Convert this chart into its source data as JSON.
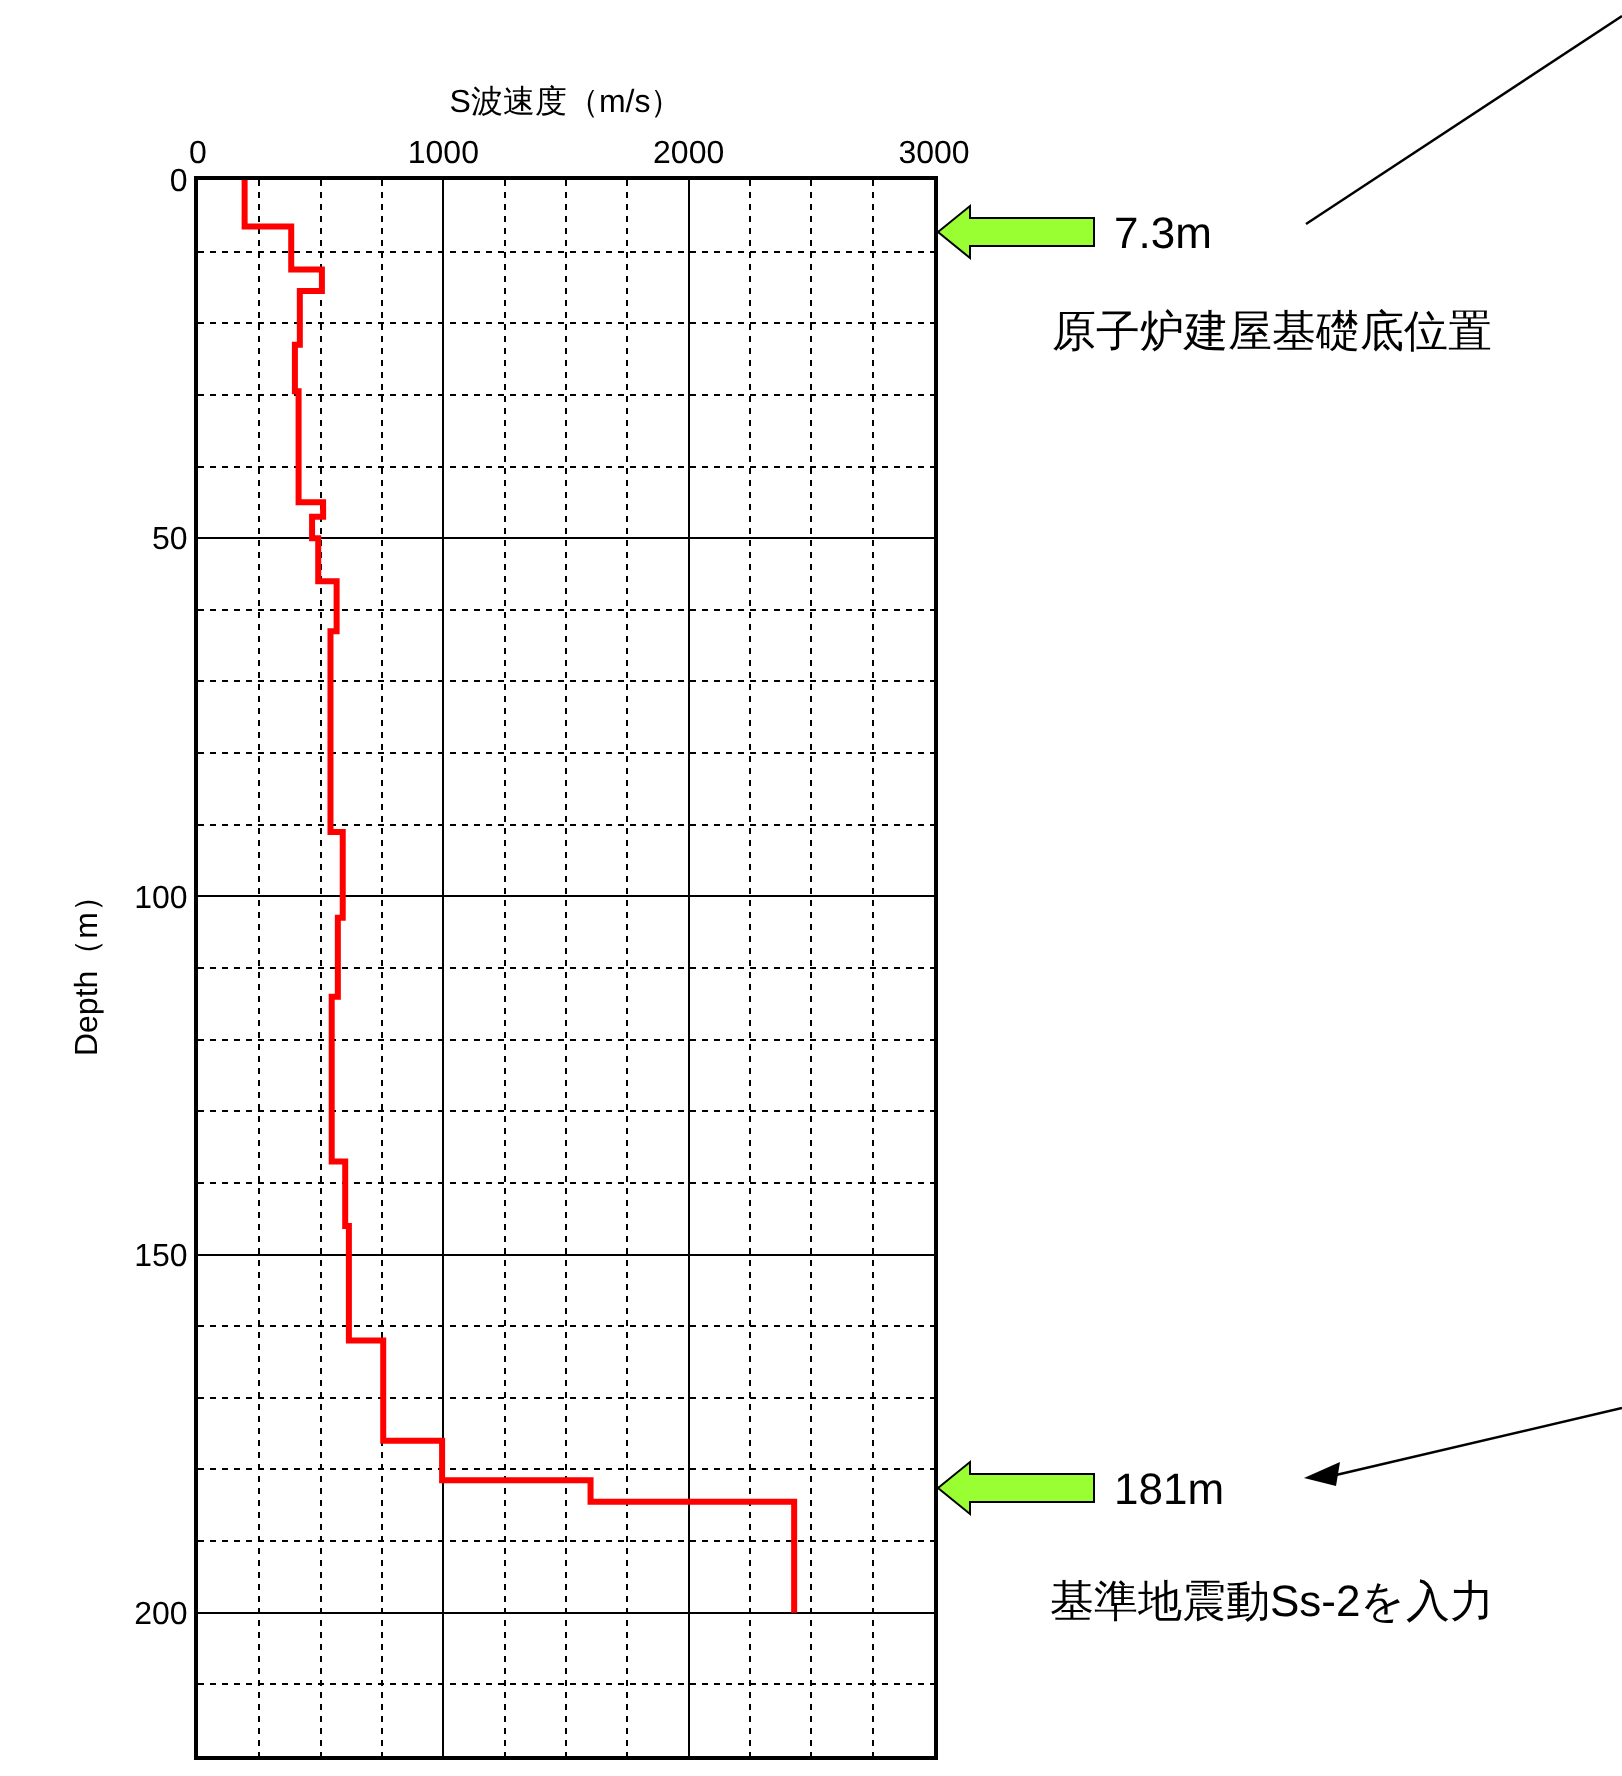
{
  "chart_data": {
    "type": "line",
    "xlabel": "S波速度（m/s）",
    "ylabel": "Depth（m）",
    "x": [
      190,
      190,
      380,
      380,
      505,
      505,
      415,
      415,
      395,
      395,
      410,
      410,
      510,
      510,
      465,
      465,
      490,
      490,
      565,
      565,
      540,
      540,
      590,
      590,
      570,
      570,
      545,
      545,
      600,
      600,
      615,
      615,
      755,
      755,
      995,
      995,
      1600,
      1600,
      2430,
      2430
    ],
    "series": [
      {
        "color": "#ff0000",
        "values": [
          0,
          6.5,
          6.5,
          12.5,
          12.5,
          15.5,
          15.5,
          23,
          23,
          29.5,
          29.5,
          45,
          45,
          47,
          47,
          50,
          50,
          56,
          56,
          63,
          63,
          91,
          91,
          103,
          103,
          114,
          114,
          137,
          137,
          146,
          146,
          162,
          162,
          176,
          176,
          181.5,
          181.5,
          184.5,
          184.5,
          200
        ]
      }
    ],
    "xlim": [
      0,
      3000
    ],
    "xticks": [
      0,
      1000,
      2000,
      3000
    ],
    "ylim": [
      220,
      0
    ],
    "yticks": [
      0,
      50,
      100,
      150,
      200
    ],
    "grid": true,
    "marker": "none",
    "line_style": "solid",
    "annotations": [
      "7.3m",
      "原子炉建屋基礎底位置",
      "181m",
      "基準地震動Ss-2を入力"
    ]
  }
}
